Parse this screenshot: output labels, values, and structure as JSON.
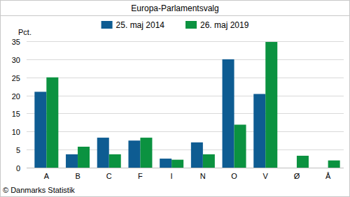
{
  "chart_data": {
    "type": "bar",
    "title": "Europa-Parlamentsvalg",
    "y_label": "Pct.",
    "source": "© Danmarks Statistik",
    "categories": [
      "A",
      "B",
      "C",
      "F",
      "I",
      "N",
      "O",
      "V",
      "Ø",
      "Å"
    ],
    "series": [
      {
        "name": "25. maj 2014",
        "color": "#0e5c92",
        "values": [
          21,
          3.7,
          8.3,
          7.5,
          2.5,
          7,
          30,
          20.4,
          null,
          null
        ]
      },
      {
        "name": "26. maj 2019",
        "color": "#0b9240",
        "values": [
          25,
          5.8,
          3.7,
          8.3,
          2.2,
          3.7,
          11.9,
          34.8,
          3.3,
          2
        ]
      }
    ],
    "ylim": [
      0,
      35
    ],
    "yticks": [
      0,
      5,
      10,
      15,
      20,
      25,
      30,
      35
    ],
    "grid": true,
    "legend": "top"
  }
}
